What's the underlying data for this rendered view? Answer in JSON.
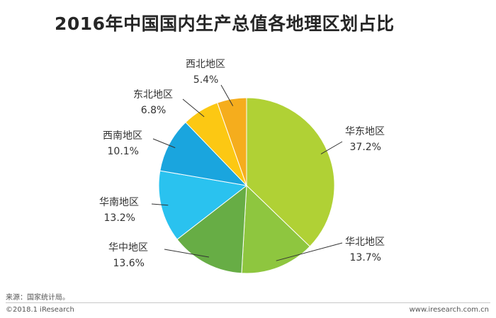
{
  "title": "2016年中国国内生产总值各地理区划占比",
  "chart_data": {
    "type": "pie",
    "title": "2016年中国国内生产总值各地理区划占比",
    "slices": [
      {
        "label": "华东地区",
        "value": 37.2,
        "text": "37.2%",
        "color": "#b0d135"
      },
      {
        "label": "华北地区",
        "value": 13.7,
        "text": "13.7%",
        "color": "#8ec63f"
      },
      {
        "label": "华中地区",
        "value": 13.6,
        "text": "13.6%",
        "color": "#67ad45"
      },
      {
        "label": "华南地区",
        "value": 13.2,
        "text": "13.2%",
        "color": "#2ac2ef"
      },
      {
        "label": "西南地区",
        "value": 10.1,
        "text": "10.1%",
        "color": "#1aa5de"
      },
      {
        "label": "东北地区",
        "value": 6.8,
        "text": "6.8%",
        "color": "#fcc813"
      },
      {
        "label": "西北地区",
        "value": 5.4,
        "text": "5.4%",
        "color": "#f5ad1d"
      }
    ],
    "start": "12 o'clock",
    "direction": "clockwise"
  },
  "source": "来源：国家统计局。",
  "copyright": "©2018.1 iResearch",
  "website": "www.iresearch.com.cn"
}
